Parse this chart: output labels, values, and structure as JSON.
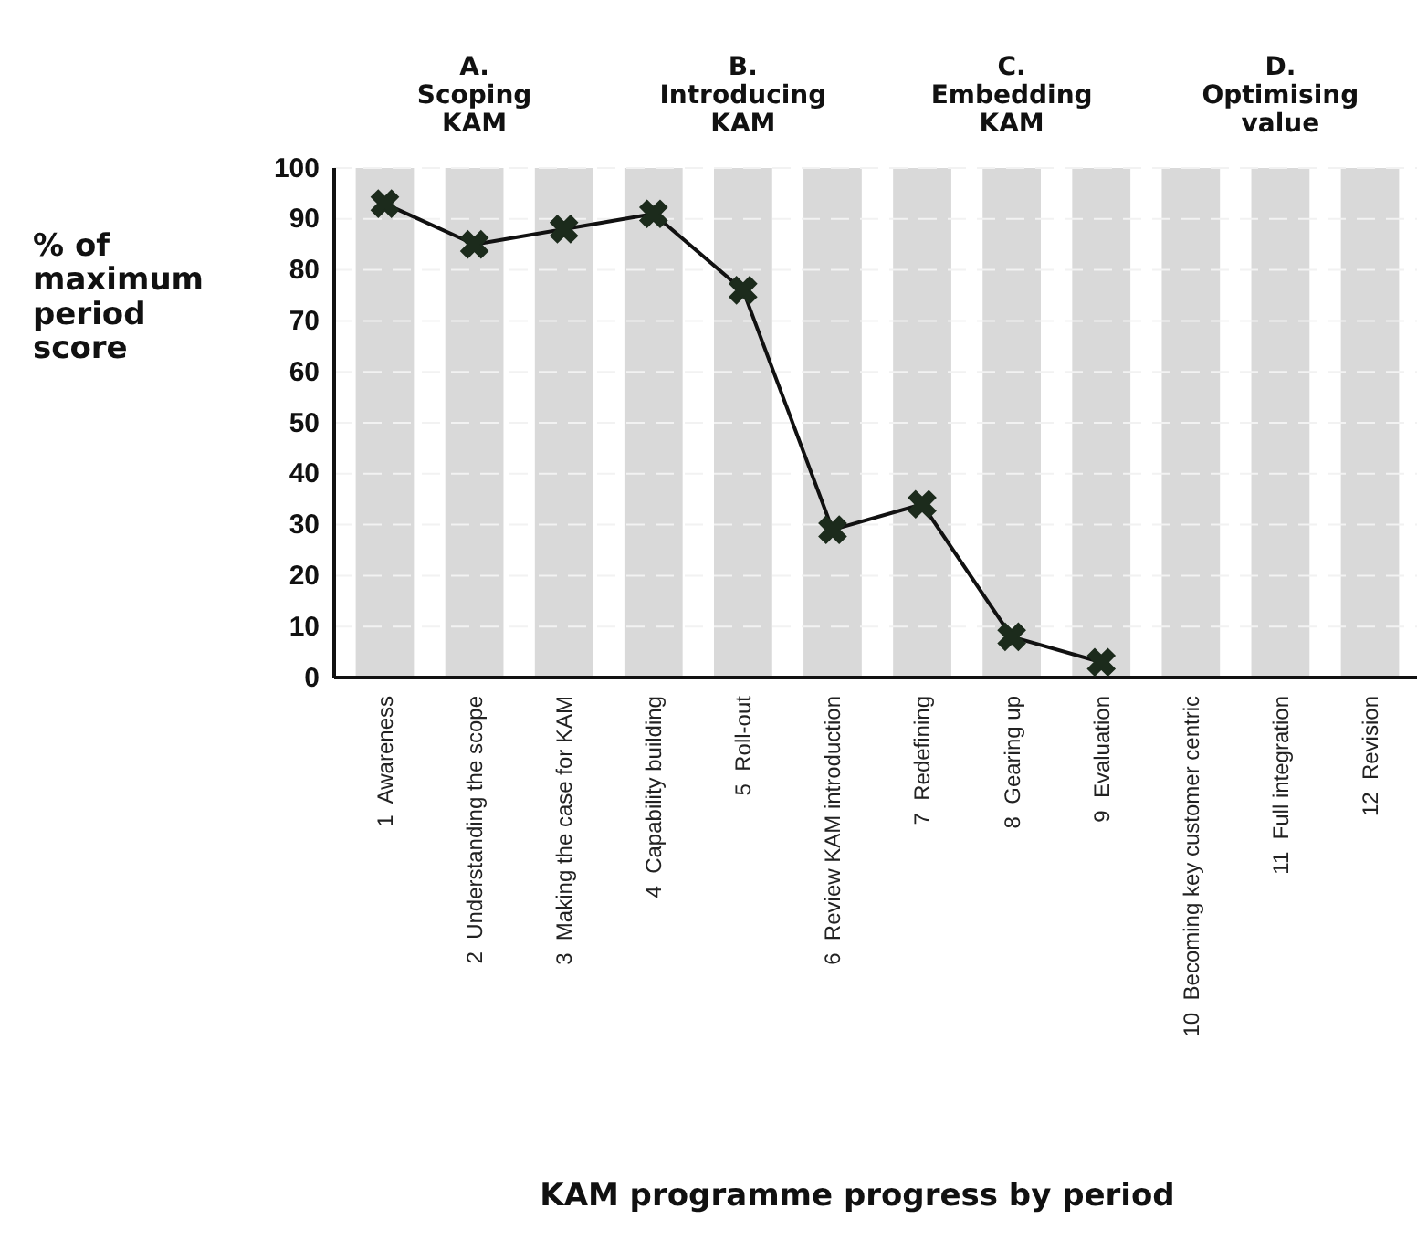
{
  "chart_data": {
    "type": "line",
    "xlabel": "KAM programme progress by period",
    "ylabel": "% of maximum period score",
    "categories": [
      "1  Awareness",
      "2  Understanding the scope",
      "3  Making the case for KAM",
      "4  Capability building",
      "5  Roll-out",
      "6  Review KAM introduction",
      "7  Redefining",
      "8  Gearing up",
      "9  Evaluation",
      "10  Becoming key customer centric",
      "11  Full integration",
      "12  Revision"
    ],
    "series": [
      {
        "type": "bar",
        "color": "#d9d9d9",
        "values": [
          100,
          100,
          100,
          100,
          100,
          100,
          100,
          100,
          100,
          100,
          100,
          100
        ]
      },
      {
        "color": "#1c2b1c",
        "values": [
          93,
          85,
          88,
          91,
          76,
          29,
          34,
          8,
          3,
          null,
          null,
          null
        ]
      }
    ],
    "ylim": [
      0,
      100
    ],
    "yticks": [
      0,
      10,
      20,
      30,
      40,
      50,
      60,
      70,
      80,
      90,
      100
    ],
    "grid": "y",
    "marker": "cross",
    "line_style": "solid",
    "annotations": [
      "A.\nScoping\nKAM",
      "B.\nIntroducing\nKAM",
      "C.\nEmbedding\nKAM",
      "D.\nOptimising\nvalue"
    ]
  }
}
